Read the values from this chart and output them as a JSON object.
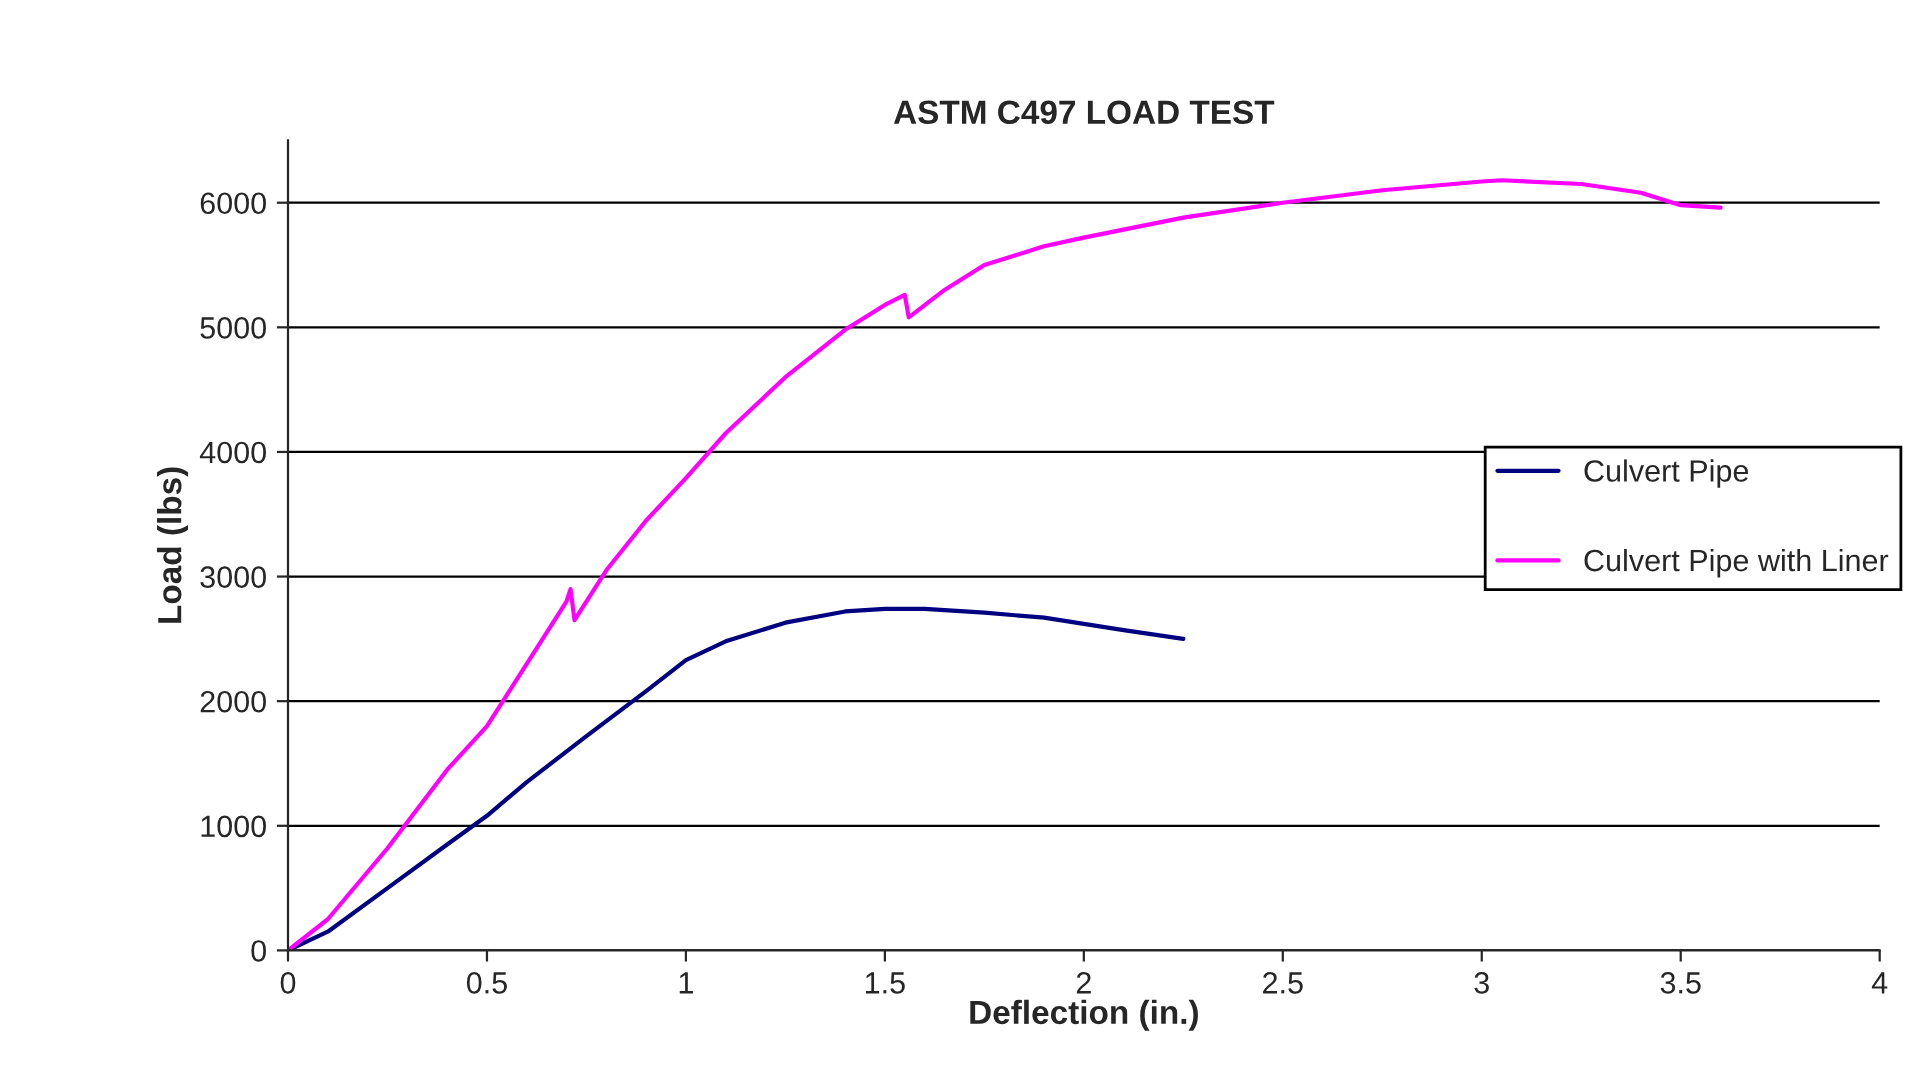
{
  "chart_data": {
    "type": "line",
    "title": "ASTM C497 LOAD TEST",
    "xlabel": "Deflection (in.)",
    "ylabel": "Load (lbs)",
    "xlim": [
      0,
      4
    ],
    "xticks": [
      0,
      0.5,
      1,
      1.5,
      2,
      2.5,
      3,
      3.5,
      4
    ],
    "ylim": [
      0,
      6500
    ],
    "yticks": [
      0,
      1000,
      2000,
      3000,
      4000,
      5000,
      6000
    ],
    "grid": "y",
    "legend": "right",
    "marker": "none",
    "line_style": "solid",
    "series": [
      {
        "name": "Culvert Pipe",
        "color": "#000080",
        "x": [
          0,
          0.1,
          0.25,
          0.4,
          0.5,
          0.6,
          0.75,
          0.9,
          1.0,
          1.1,
          1.25,
          1.4,
          1.5,
          1.6,
          1.75,
          1.9,
          2.0,
          2.1,
          2.25
        ],
        "values": [
          0,
          150,
          500,
          850,
          1080,
          1350,
          1720,
          2080,
          2330,
          2480,
          2630,
          2720,
          2740,
          2740,
          2710,
          2670,
          2620,
          2570,
          2500
        ]
      },
      {
        "name": "Culvert Pipe with Liner",
        "color": "#ff00ff",
        "x": [
          0,
          0.1,
          0.25,
          0.4,
          0.5,
          0.6,
          0.7,
          0.71,
          0.72,
          0.8,
          0.9,
          1.0,
          1.1,
          1.25,
          1.4,
          1.5,
          1.55,
          1.56,
          1.65,
          1.75,
          1.9,
          2.0,
          2.25,
          2.5,
          2.75,
          3.0,
          3.05,
          3.25,
          3.4,
          3.5,
          3.6
        ],
        "values": [
          0,
          250,
          820,
          1450,
          1800,
          2300,
          2800,
          2900,
          2650,
          3050,
          3450,
          3790,
          4150,
          4600,
          4980,
          5180,
          5260,
          5080,
          5300,
          5500,
          5650,
          5720,
          5880,
          6000,
          6100,
          6170,
          6180,
          6150,
          6080,
          5980,
          5960
        ]
      }
    ]
  }
}
